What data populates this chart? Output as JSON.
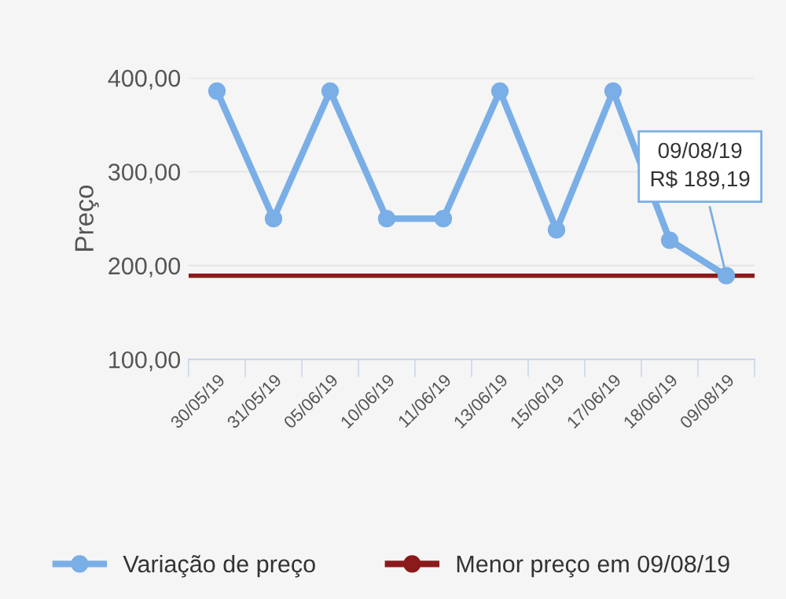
{
  "chart_data": {
    "type": "line",
    "ylabel": "Preço",
    "categories": [
      "30/05/19",
      "31/05/19",
      "05/06/19",
      "10/06/19",
      "11/06/19",
      "13/06/19",
      "15/06/19",
      "17/06/19",
      "18/06/19",
      "09/08/19"
    ],
    "series": [
      {
        "name": "Variação de preço",
        "color": "#7aaee6",
        "values": [
          386,
          250,
          386,
          250,
          250,
          386,
          238,
          386,
          227,
          189.19
        ]
      }
    ],
    "ylim": [
      100,
      400
    ],
    "yticks": [
      {
        "value": 100,
        "label": "100,00"
      },
      {
        "value": 200,
        "label": "200,00"
      },
      {
        "value": 300,
        "label": "300,00"
      },
      {
        "value": 400,
        "label": "400,00"
      }
    ],
    "ref_lines": [
      {
        "axis": "y",
        "value": 189.19,
        "label": "Menor preço em 09/08/19",
        "color": "#8b1a1a"
      }
    ],
    "annotations": [
      {
        "text": "09/08/19\nR$ 189,19",
        "x": "09/08/19",
        "y": 189.19
      }
    ],
    "grid": "y",
    "legend": "bottom",
    "marker": "circle",
    "line_style": "solid"
  }
}
